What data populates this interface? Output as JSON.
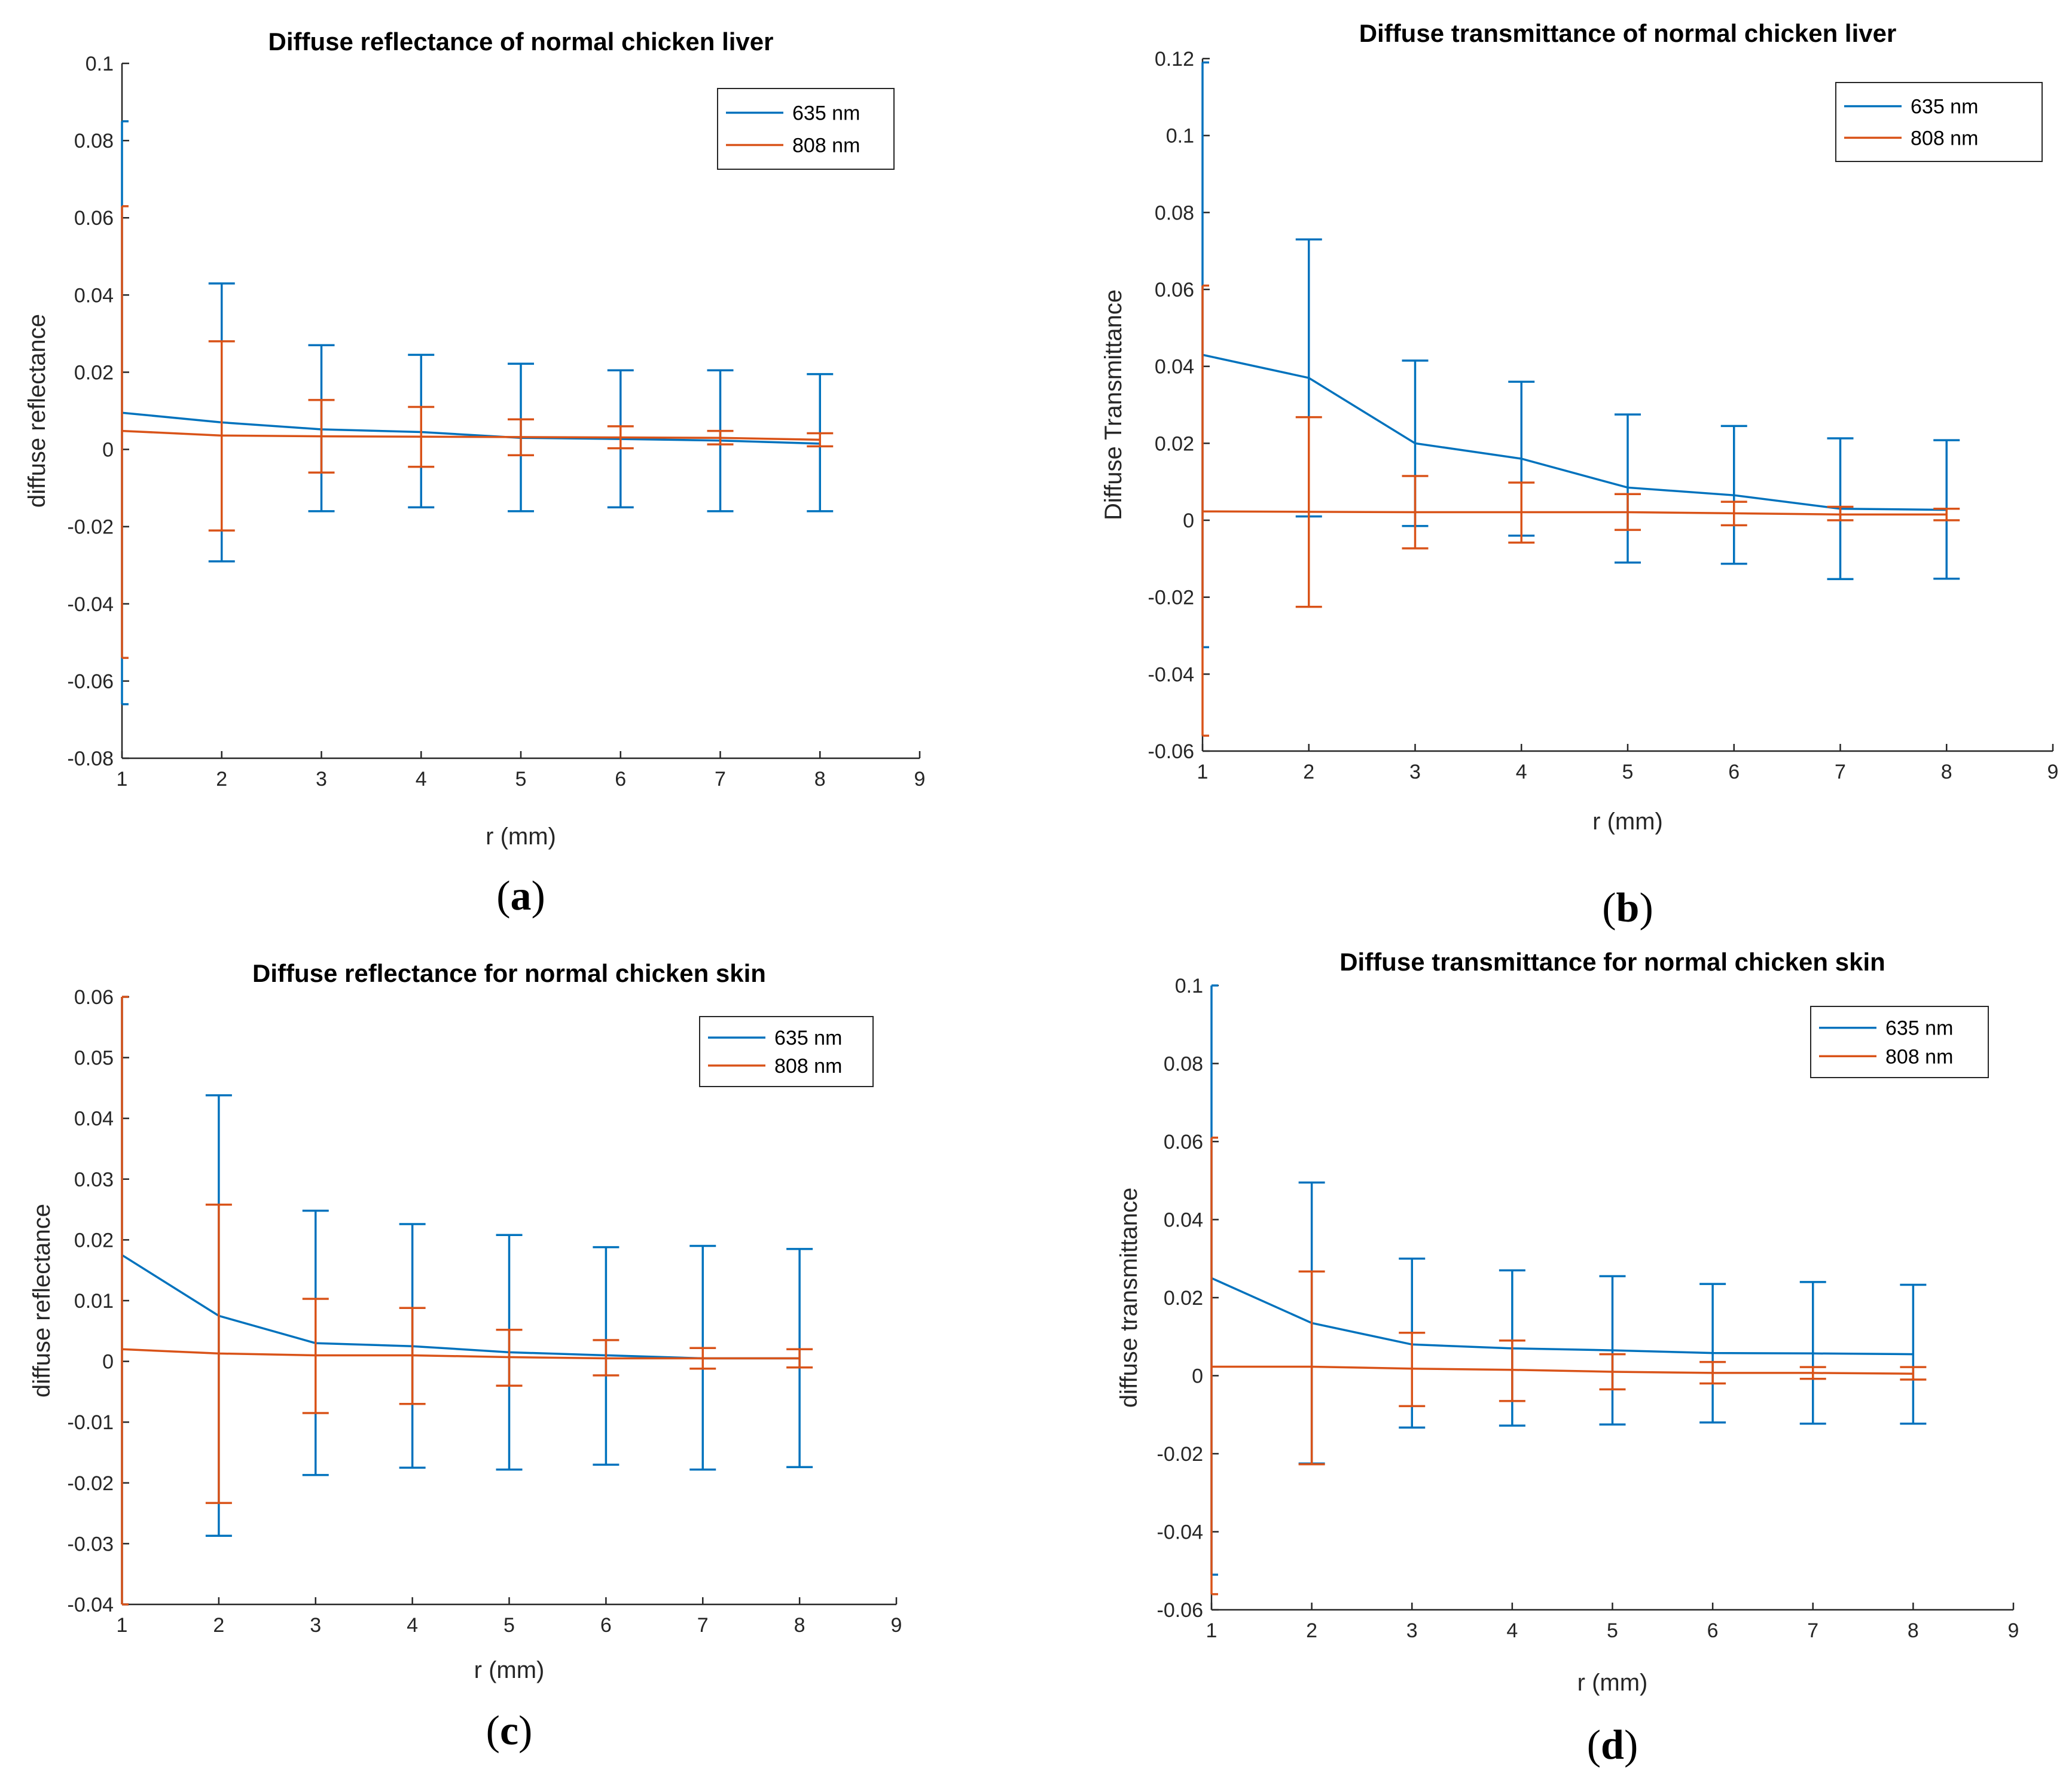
{
  "figure": {
    "panels_count": 4
  },
  "colors": {
    "s635": "#0072BD",
    "s808": "#D95319",
    "axis": "#262626"
  },
  "chart_data": [
    {
      "type": "line",
      "panel_label": "a",
      "title": "Diffuse reflectance of normal chicken liver",
      "xlabel": "r (mm)",
      "ylabel": "diffuse reflectance",
      "xlim": [
        1,
        9
      ],
      "ylim": [
        -0.08,
        0.1
      ],
      "xticks": [
        1,
        2,
        3,
        4,
        5,
        6,
        7,
        8,
        9
      ],
      "xtick_labels": [
        "1",
        "2",
        "3",
        "4",
        "5",
        "6",
        "7",
        "8",
        "9"
      ],
      "yticks": [
        -0.08,
        -0.06,
        -0.04,
        -0.02,
        0,
        0.02,
        0.04,
        0.06,
        0.08,
        0.1
      ],
      "ytick_labels": [
        "-0.08",
        "-0.06",
        "-0.04",
        "-0.02",
        "0",
        "0.02",
        "0.04",
        "0.06",
        "0.08",
        "0.1"
      ],
      "legend_position": "top-right",
      "series": [
        {
          "name": "635 nm",
          "x": [
            1,
            2,
            3,
            4,
            5,
            6,
            7,
            8
          ],
          "values": [
            0.0095,
            0.007,
            0.0052,
            0.0045,
            0.003,
            0.0027,
            0.0023,
            0.0015
          ],
          "err_low": [
            -0.066,
            -0.029,
            -0.016,
            -0.015,
            -0.016,
            -0.015,
            -0.016,
            -0.016
          ],
          "err_high": [
            0.085,
            0.043,
            0.027,
            0.0245,
            0.0222,
            0.0205,
            0.0205,
            0.0195
          ]
        },
        {
          "name": "808 nm",
          "x": [
            1,
            2,
            3,
            4,
            5,
            6,
            7,
            8
          ],
          "values": [
            0.0048,
            0.0036,
            0.0034,
            0.0033,
            0.0032,
            0.0031,
            0.003,
            0.0025
          ],
          "err_low": [
            -0.054,
            -0.021,
            -0.006,
            -0.0045,
            -0.0015,
            0.0003,
            0.0013,
            0.0008
          ],
          "err_high": [
            0.063,
            0.028,
            0.0128,
            0.011,
            0.0078,
            0.006,
            0.0048,
            0.0042
          ]
        }
      ]
    },
    {
      "type": "line",
      "panel_label": "b",
      "title": "Diffuse transmittance of normal chicken liver",
      "xlabel": "r (mm)",
      "ylabel": "Diffuse Transmittance",
      "xlim": [
        1,
        9
      ],
      "ylim": [
        -0.06,
        0.12
      ],
      "xticks": [
        1,
        2,
        3,
        4,
        5,
        6,
        7,
        8,
        9
      ],
      "xtick_labels": [
        "1",
        "2",
        "3",
        "4",
        "5",
        "6",
        "7",
        "8",
        "9"
      ],
      "yticks": [
        -0.06,
        -0.04,
        -0.02,
        0,
        0.02,
        0.04,
        0.06,
        0.08,
        0.1,
        0.12
      ],
      "ytick_labels": [
        "-0.06",
        "-0.04",
        "-0.02",
        "0",
        "0.02",
        "0.04",
        "0.06",
        "0.08",
        "0.1",
        "0.12"
      ],
      "legend_position": "top-right",
      "series": [
        {
          "name": "635 nm",
          "x": [
            1,
            2,
            3,
            4,
            5,
            6,
            7,
            8
          ],
          "values": [
            0.043,
            0.037,
            0.02,
            0.016,
            0.0085,
            0.0065,
            0.003,
            0.0027
          ],
          "err_low": [
            -0.033,
            0.001,
            -0.0015,
            -0.004,
            -0.011,
            -0.0113,
            -0.0153,
            -0.0152
          ],
          "err_high": [
            0.119,
            0.073,
            0.0415,
            0.036,
            0.0275,
            0.0245,
            0.0213,
            0.0208
          ]
        },
        {
          "name": "808 nm",
          "x": [
            1,
            2,
            3,
            4,
            5,
            6,
            7,
            8
          ],
          "values": [
            0.0023,
            0.0022,
            0.0021,
            0.0021,
            0.0021,
            0.0018,
            0.0015,
            0.0015
          ],
          "err_low": [
            -0.056,
            -0.0225,
            -0.0073,
            -0.0058,
            -0.0025,
            -0.0013,
            0,
            0
          ],
          "err_high": [
            0.061,
            0.0268,
            0.0115,
            0.0098,
            0.0068,
            0.0048,
            0.0035,
            0.003
          ]
        }
      ]
    },
    {
      "type": "line",
      "panel_label": "c",
      "title": "Diffuse reflectance for normal chicken skin",
      "xlabel": "r (mm)",
      "ylabel": "diffuse reflectance",
      "xlim": [
        1,
        9
      ],
      "ylim": [
        -0.04,
        0.06
      ],
      "xticks": [
        1,
        2,
        3,
        4,
        5,
        6,
        7,
        8,
        9
      ],
      "xtick_labels": [
        "1",
        "2",
        "3",
        "4",
        "5",
        "6",
        "7",
        "8",
        "9"
      ],
      "yticks": [
        -0.04,
        -0.03,
        -0.02,
        -0.01,
        0,
        0.01,
        0.02,
        0.03,
        0.04,
        0.05,
        0.06
      ],
      "ytick_labels": [
        "-0.04",
        "-0.03",
        "-0.02",
        "-0.01",
        "0",
        "0.01",
        "0.02",
        "0.03",
        "0.04",
        "0.05",
        "0.06"
      ],
      "legend_position": "top-right",
      "series": [
        {
          "name": "635 nm",
          "x": [
            1,
            2,
            3,
            4,
            5,
            6,
            7,
            8
          ],
          "values": [
            0.0175,
            0.0075,
            0.003,
            0.0025,
            0.0015,
            0.001,
            0.0005,
            0.0005
          ],
          "err_low": [
            -0.04,
            -0.0287,
            -0.0187,
            -0.0175,
            -0.0178,
            -0.017,
            -0.0178,
            -0.0174
          ],
          "err_high": [
            0.06,
            0.0438,
            0.0248,
            0.0226,
            0.0208,
            0.0188,
            0.019,
            0.0185
          ]
        },
        {
          "name": "808 nm",
          "x": [
            1,
            2,
            3,
            4,
            5,
            6,
            7,
            8
          ],
          "values": [
            0.002,
            0.0013,
            0.001,
            0.001,
            0.0007,
            0.0005,
            0.0005,
            0.0005
          ],
          "err_low": [
            -0.04,
            -0.0233,
            -0.0085,
            -0.007,
            -0.004,
            -0.0023,
            -0.0012,
            -0.001
          ],
          "err_high": [
            0.06,
            0.0258,
            0.0103,
            0.0088,
            0.0052,
            0.0035,
            0.0022,
            0.002
          ]
        }
      ]
    },
    {
      "type": "line",
      "panel_label": "d",
      "title": "Diffuse transmittance for normal chicken skin",
      "xlabel": "r (mm)",
      "ylabel": "diffuse transmittance",
      "xlim": [
        1,
        9
      ],
      "ylim": [
        -0.06,
        0.1
      ],
      "xticks": [
        1,
        2,
        3,
        4,
        5,
        6,
        7,
        8,
        9
      ],
      "xtick_labels": [
        "1",
        "2",
        "3",
        "4",
        "5",
        "6",
        "7",
        "8",
        "9"
      ],
      "yticks": [
        -0.06,
        -0.04,
        -0.02,
        0,
        0.02,
        0.04,
        0.06,
        0.08,
        0.1
      ],
      "ytick_labels": [
        "-0.06",
        "-0.04",
        "-0.02",
        "0",
        "0.02",
        "0.04",
        "0.06",
        "0.08",
        "0.1"
      ],
      "legend_position": "top-right",
      "series": [
        {
          "name": "635 nm",
          "x": [
            1,
            2,
            3,
            4,
            5,
            6,
            7,
            8
          ],
          "values": [
            0.025,
            0.0135,
            0.008,
            0.007,
            0.0065,
            0.0058,
            0.0057,
            0.0055
          ],
          "err_low": [
            -0.051,
            -0.0225,
            -0.0133,
            -0.0128,
            -0.0125,
            -0.012,
            -0.0123,
            -0.0123
          ],
          "err_high": [
            0.1,
            0.0495,
            0.03,
            0.027,
            0.0255,
            0.0235,
            0.024,
            0.0233
          ]
        },
        {
          "name": "808 nm",
          "x": [
            1,
            2,
            3,
            4,
            5,
            6,
            7,
            8
          ],
          "values": [
            0.0023,
            0.0023,
            0.0018,
            0.0015,
            0.001,
            0.0007,
            0.0007,
            0.0005
          ],
          "err_low": [
            -0.056,
            -0.0227,
            -0.0078,
            -0.0065,
            -0.0035,
            -0.002,
            -0.0008,
            -0.001
          ],
          "err_high": [
            0.061,
            0.0267,
            0.011,
            0.009,
            0.0055,
            0.0035,
            0.0022,
            0.0022
          ]
        }
      ]
    }
  ]
}
